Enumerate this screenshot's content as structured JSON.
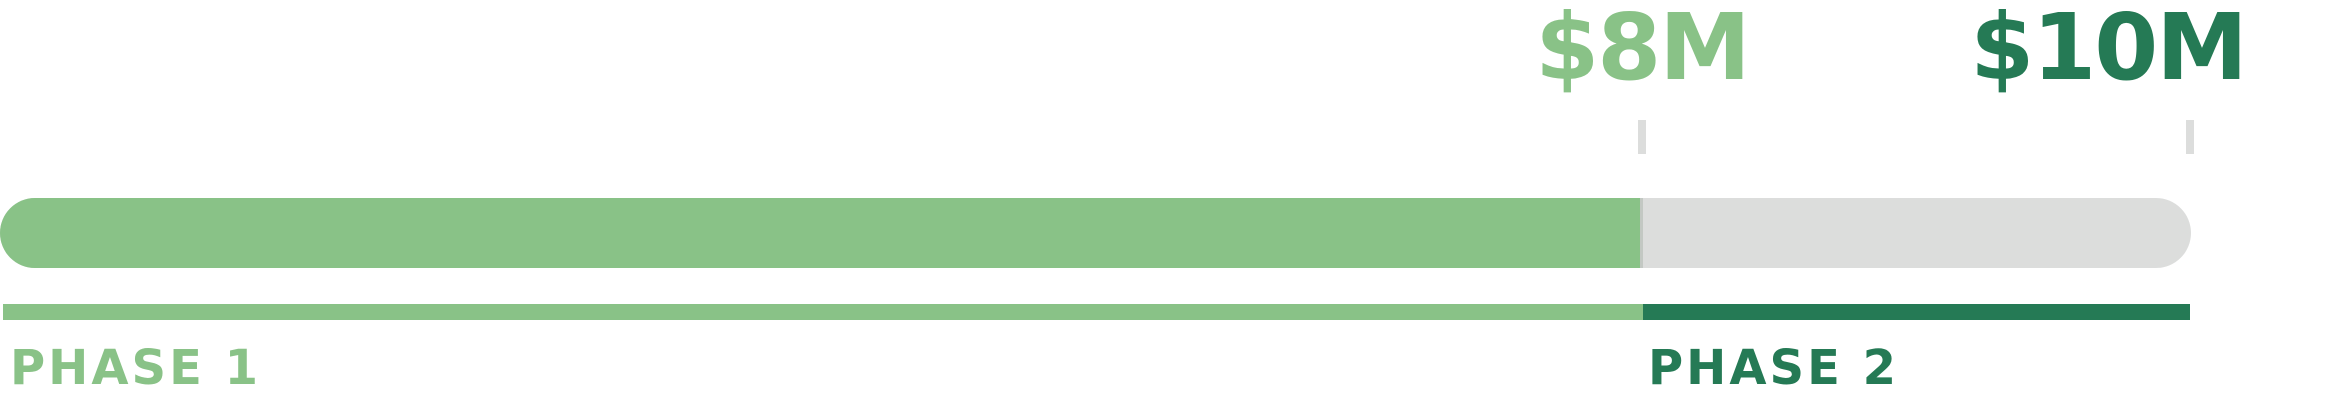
{
  "milestones": [
    {
      "amount": "$8M",
      "color": "#89c287"
    },
    {
      "amount": "$10M",
      "color": "#257a55"
    }
  ],
  "progress": {
    "fill_percent": 75,
    "fill_color": "#89c287",
    "track_color": "#dcdddc"
  },
  "phases": [
    {
      "label": "PHASE 1",
      "color": "#89c287",
      "share_percent": 75
    },
    {
      "label": "PHASE 2",
      "color": "#257a55",
      "share_percent": 25
    }
  ]
}
